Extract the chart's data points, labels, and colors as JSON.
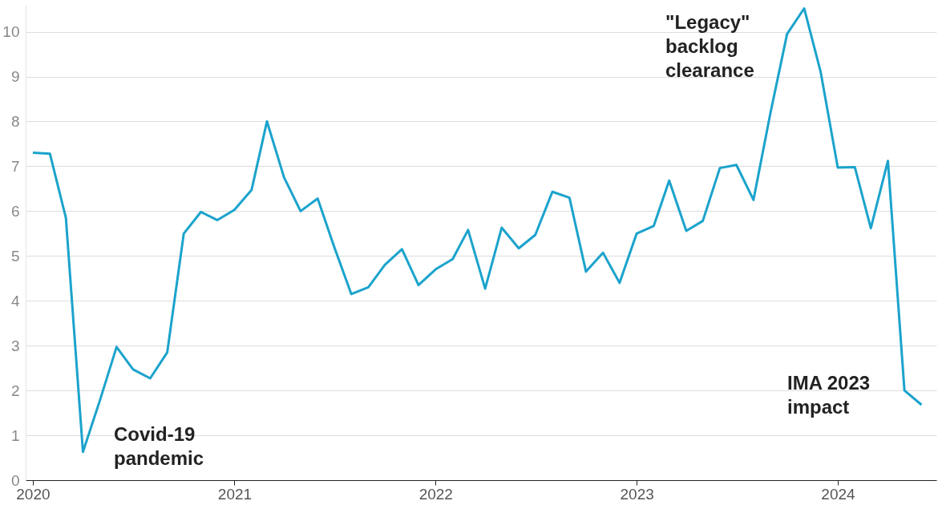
{
  "chart_data": {
    "type": "line",
    "x": [
      "2020-01",
      "2020-02",
      "2020-03",
      "2020-04",
      "2020-05",
      "2020-06",
      "2020-07",
      "2020-08",
      "2020-09",
      "2020-10",
      "2020-11",
      "2020-12",
      "2021-01",
      "2021-02",
      "2021-03",
      "2021-04",
      "2021-05",
      "2021-06",
      "2021-07",
      "2021-08",
      "2021-09",
      "2021-10",
      "2021-11",
      "2021-12",
      "2022-01",
      "2022-02",
      "2022-03",
      "2022-04",
      "2022-05",
      "2022-06",
      "2022-07",
      "2022-08",
      "2022-09",
      "2022-10",
      "2022-11",
      "2022-12",
      "2023-01",
      "2023-02",
      "2023-03",
      "2023-04",
      "2023-05",
      "2023-06",
      "2023-07",
      "2023-08",
      "2023-09",
      "2023-10",
      "2023-11",
      "2023-12",
      "2024-01",
      "2024-02",
      "2024-03",
      "2024-04",
      "2024-05",
      "2024-06"
    ],
    "series": [
      {
        "color": "#1ba3cc",
        "values": [
          7.3,
          7.28,
          5.85,
          0.63,
          1.75,
          2.97,
          2.47,
          2.27,
          2.85,
          5.5,
          5.98,
          5.8,
          6.03,
          6.47,
          8.0,
          6.75,
          6.0,
          6.28,
          5.2,
          4.15,
          4.3,
          4.8,
          5.15,
          4.35,
          4.7,
          4.93,
          5.58,
          4.27,
          5.63,
          5.17,
          5.47,
          6.43,
          6.3,
          4.65,
          5.07,
          4.4,
          5.5,
          5.67,
          6.68,
          5.56,
          5.78,
          6.96,
          7.03,
          6.25,
          8.2,
          9.95,
          10.52,
          9.1,
          6.97,
          6.98,
          5.62,
          7.12,
          2.0,
          1.68
        ]
      }
    ],
    "xlim": [
      "2019-12-19",
      "2024-06-28"
    ],
    "xticks": [
      "2020",
      "2021",
      "2022",
      "2023",
      "2024"
    ],
    "ylim": [
      0,
      10.6
    ],
    "yticks": [
      0,
      1,
      2,
      3,
      4,
      5,
      6,
      7,
      8,
      9,
      10
    ],
    "grid": "y",
    "marker": "none",
    "line_style": "solid",
    "annotations": [
      "Covid-19\npandemic",
      "\"Legacy\"\nbacklog\nclearance",
      "IMA 2023\nimpact"
    ]
  }
}
